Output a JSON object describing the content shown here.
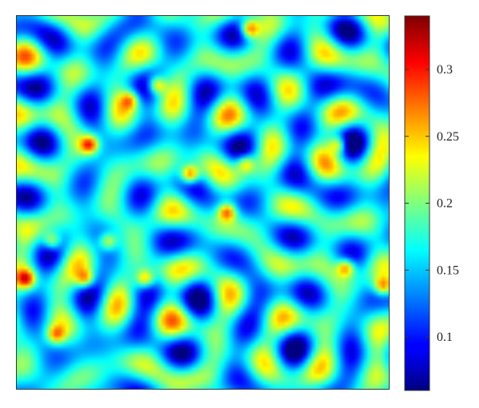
{
  "chart_data": {
    "type": "heatmap",
    "title": "",
    "xlabel": "",
    "ylabel": "",
    "colormap": "jet",
    "color_range": [
      0.06,
      0.34
    ],
    "colorbar": {
      "ticks": [
        0.1,
        0.15,
        0.2,
        0.25,
        0.3
      ],
      "tick_labels": [
        "0.1",
        "0.15",
        "0.2",
        "0.25",
        "0.3"
      ]
    },
    "grid_size": [
      100,
      100
    ],
    "value_field": {
      "pattern": "reaction-diffusion spots and stripes (Turing pattern)",
      "baseline": 0.16,
      "peaks": [
        {
          "x": 0.02,
          "y": 0.7,
          "value": 0.31
        },
        {
          "x": 0.18,
          "y": 0.7,
          "value": 0.29
        },
        {
          "x": 0.34,
          "y": 0.7,
          "value": 0.3
        },
        {
          "x": 0.09,
          "y": 0.6,
          "value": 0.29
        },
        {
          "x": 0.24,
          "y": 0.6,
          "value": 0.28
        },
        {
          "x": 0.46,
          "y": 0.42,
          "value": 0.34
        },
        {
          "x": 0.56,
          "y": 0.52,
          "value": 0.31
        },
        {
          "x": 0.61,
          "y": 0.39,
          "value": 0.28
        },
        {
          "x": 0.19,
          "y": 0.34,
          "value": 0.32
        },
        {
          "x": 0.3,
          "y": 0.22,
          "value": 0.27
        },
        {
          "x": 0.37,
          "y": 0.18,
          "value": 0.31
        },
        {
          "x": 0.88,
          "y": 0.67,
          "value": 0.3
        },
        {
          "x": 0.86,
          "y": 0.34,
          "value": 0.3
        },
        {
          "x": 0.98,
          "y": 0.72,
          "value": 0.3
        },
        {
          "x": 0.1,
          "y": 0.85,
          "value": 0.27
        },
        {
          "x": 0.62,
          "y": 0.03,
          "value": 0.32
        }
      ]
    }
  }
}
